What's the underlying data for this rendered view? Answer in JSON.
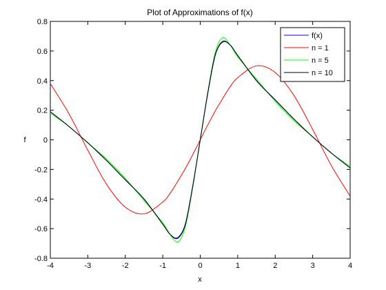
{
  "chart_data": {
    "type": "line",
    "title": "Plot of Approximations of f(x)",
    "xlabel": "x",
    "ylabel": "f",
    "xlim": [
      -4,
      4
    ],
    "ylim": [
      -0.8,
      0.8
    ],
    "xticks": [
      -4,
      -3,
      -2,
      -1,
      0,
      1,
      2,
      3,
      4
    ],
    "yticks": [
      -0.8,
      -0.6,
      -0.4,
      -0.2,
      0,
      0.2,
      0.4,
      0.6,
      0.8
    ],
    "xtick_labels": [
      "-4",
      "-3",
      "-2",
      "-1",
      "0",
      "1",
      "2",
      "3",
      "4"
    ],
    "ytick_labels": [
      "-0.8",
      "-0.6",
      "-0.4",
      "-0.2",
      "0",
      "0.2",
      "0.4",
      "0.6",
      "0.8"
    ],
    "grid": false,
    "legend_position": "top-right",
    "x": [
      -4,
      -3.5,
      -3,
      -2.5,
      -2,
      -1.5,
      -1,
      -0.8,
      -0.6,
      -0.4,
      -0.2,
      0,
      0.2,
      0.4,
      0.6,
      0.8,
      1,
      1.5,
      2,
      2.5,
      3,
      3.5,
      4
    ],
    "series": [
      {
        "name": "f(x)",
        "color": "#0000ff",
        "values": [
          0.19,
          0.09,
          -0.02,
          -0.14,
          -0.27,
          -0.4,
          -0.57,
          -0.64,
          -0.66,
          -0.57,
          -0.31,
          0,
          0.31,
          0.57,
          0.66,
          0.64,
          0.57,
          0.4,
          0.27,
          0.14,
          0.02,
          -0.09,
          -0.19
        ]
      },
      {
        "name": "n = 1",
        "color": "#ff0000",
        "values": [
          0.38,
          0.175,
          -0.07,
          -0.3,
          -0.455,
          -0.5,
          -0.42,
          -0.36,
          -0.28,
          -0.195,
          -0.1,
          0,
          0.1,
          0.195,
          0.28,
          0.36,
          0.42,
          0.5,
          0.455,
          0.3,
          0.07,
          -0.175,
          -0.38
        ]
      },
      {
        "name": "n = 5",
        "color": "#00ff00",
        "values": [
          0.18,
          0.09,
          -0.02,
          -0.13,
          -0.26,
          -0.41,
          -0.56,
          -0.64,
          -0.69,
          -0.59,
          -0.32,
          0,
          0.32,
          0.59,
          0.69,
          0.64,
          0.56,
          0.41,
          0.26,
          0.13,
          0.02,
          -0.09,
          -0.18
        ]
      },
      {
        "name": "n = 10",
        "color": "#000000",
        "values": [
          0.19,
          0.09,
          -0.02,
          -0.14,
          -0.27,
          -0.4,
          -0.57,
          -0.64,
          -0.665,
          -0.575,
          -0.315,
          0,
          0.315,
          0.575,
          0.665,
          0.64,
          0.57,
          0.4,
          0.27,
          0.14,
          0.02,
          -0.09,
          -0.19
        ]
      }
    ]
  }
}
